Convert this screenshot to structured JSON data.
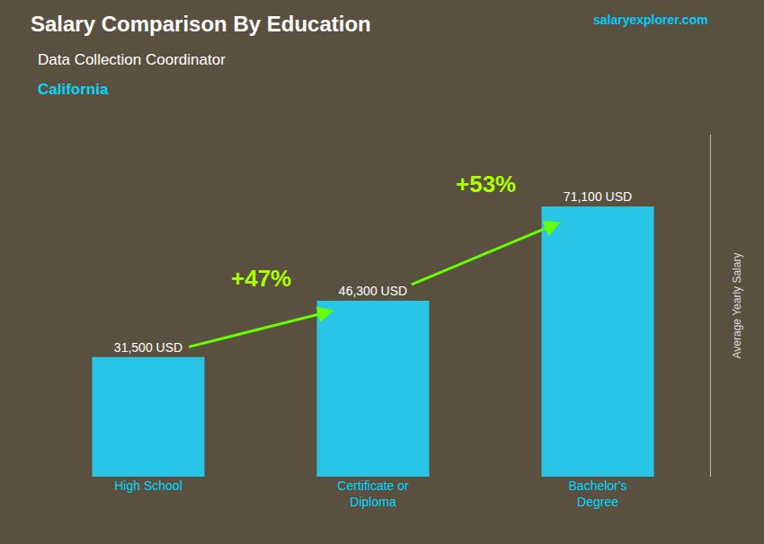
{
  "chart_data": {
    "type": "bar",
    "title": "Salary Comparison By Education",
    "subtitle": "Data Collection Coordinator",
    "ylabel": "Average Yearly Salary",
    "categories": [
      "High School",
      "Certificate or\nDiploma",
      "Bachelor's\nDegree"
    ],
    "values": [
      31500,
      46300,
      71100
    ],
    "value_labels": [
      "31,500 USD",
      "46,300 USD",
      "71,100 USD"
    ],
    "data_labels": true,
    "color": "#29C5E6",
    "ylim": [
      0,
      90000
    ],
    "grid": false,
    "tick_labels": "x",
    "annotations": [
      {
        "text": "California"
      },
      {
        "text": "salaryexplorer.com"
      },
      {
        "text": "+47%",
        "from": "High School",
        "to": "Certificate or\nDiploma"
      },
      {
        "text": "+53%",
        "from": "Certificate or\nDiploma",
        "to": "Bachelor's\nDegree"
      }
    ]
  }
}
